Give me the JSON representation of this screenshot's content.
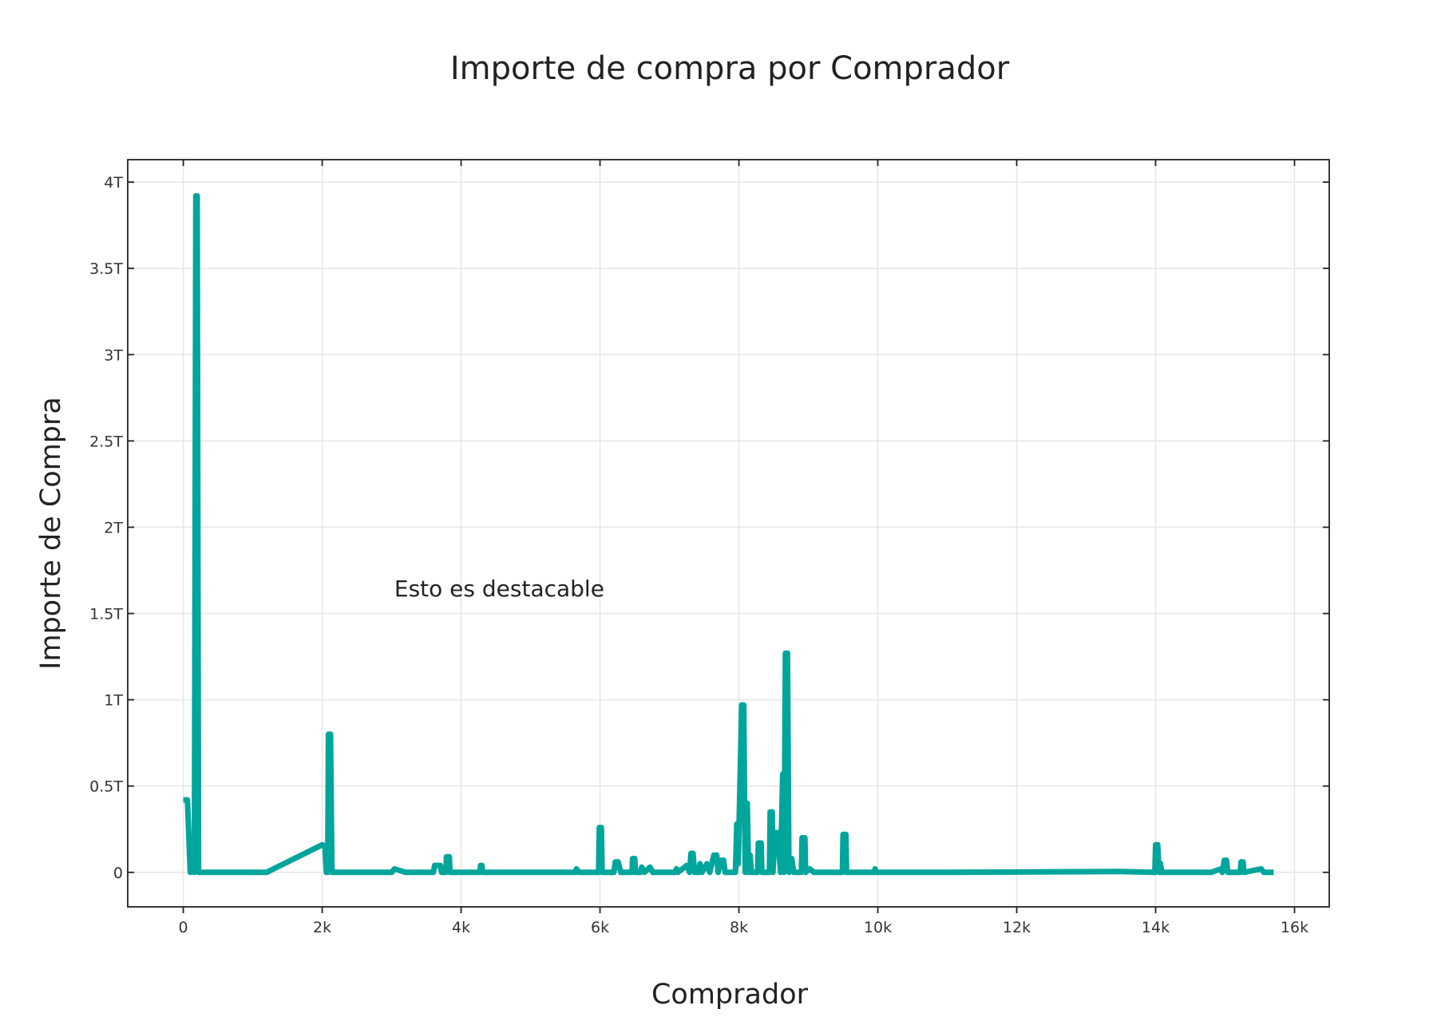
{
  "chart_data": {
    "type": "line",
    "title": "Importe de compra por Comprador",
    "xlabel": "Comprador",
    "ylabel": "Importe de Compra",
    "xlim": [
      -800,
      16500
    ],
    "ylim": [
      -200000000000.0,
      4130000000000.0
    ],
    "x_ticks": [
      {
        "value": 0,
        "label": "0"
      },
      {
        "value": 2000,
        "label": "2k"
      },
      {
        "value": 4000,
        "label": "4k"
      },
      {
        "value": 6000,
        "label": "6k"
      },
      {
        "value": 8000,
        "label": "8k"
      },
      {
        "value": 10000,
        "label": "10k"
      },
      {
        "value": 12000,
        "label": "12k"
      },
      {
        "value": 14000,
        "label": "14k"
      },
      {
        "value": 16000,
        "label": "16k"
      }
    ],
    "y_ticks": [
      {
        "value": 0,
        "label": "0"
      },
      {
        "value": 500000000000.0,
        "label": "0.5T"
      },
      {
        "value": 1000000000000.0,
        "label": "1T"
      },
      {
        "value": 1500000000000.0,
        "label": "1.5T"
      },
      {
        "value": 2000000000000.0,
        "label": "2T"
      },
      {
        "value": 2500000000000.0,
        "label": "2.5T"
      },
      {
        "value": 3000000000000.0,
        "label": "3T"
      },
      {
        "value": 3500000000000.0,
        "label": "3.5T"
      },
      {
        "value": 4000000000000.0,
        "label": "4T"
      }
    ],
    "grid": true,
    "annotation": {
      "text": "Esto es destacable",
      "x": 4550,
      "y": 1600000000000.0
    },
    "series": [
      {
        "color": "#00a59b",
        "points": [
          [
            0,
            420000000000.0
          ],
          [
            60,
            420000000000.0
          ],
          [
            100,
            0
          ],
          [
            140,
            100000000000.0
          ],
          [
            160,
            0
          ],
          [
            180,
            3920000000000.0
          ],
          [
            200,
            3920000000000.0
          ],
          [
            220,
            0
          ],
          [
            600,
            0
          ],
          [
            800,
            0
          ],
          [
            1200,
            0
          ],
          [
            2000,
            160000000000.0
          ],
          [
            2040,
            150000000000.0
          ],
          [
            2060,
            0
          ],
          [
            2080,
            0
          ],
          [
            2090,
            800000000000.0
          ],
          [
            2120,
            800000000000.0
          ],
          [
            2140,
            0
          ],
          [
            3000,
            0
          ],
          [
            3040,
            20000000000.0
          ],
          [
            3200,
            0
          ],
          [
            3600,
            0
          ],
          [
            3620,
            40000000000.0
          ],
          [
            3700,
            40000000000.0
          ],
          [
            3720,
            0
          ],
          [
            3780,
            0
          ],
          [
            3790,
            90000000000.0
          ],
          [
            3830,
            90000000000.0
          ],
          [
            3840,
            0
          ],
          [
            4270,
            0
          ],
          [
            4280,
            40000000000.0
          ],
          [
            4300,
            40000000000.0
          ],
          [
            4310,
            0
          ],
          [
            5650,
            0
          ],
          [
            5660,
            20000000000.0
          ],
          [
            5700,
            0
          ],
          [
            5980,
            0
          ],
          [
            5990,
            260000000000.0
          ],
          [
            6020,
            260000000000.0
          ],
          [
            6030,
            0
          ],
          [
            6200,
            0
          ],
          [
            6220,
            60000000000.0
          ],
          [
            6260,
            60000000000.0
          ],
          [
            6300,
            0
          ],
          [
            6460,
            0
          ],
          [
            6470,
            80000000000.0
          ],
          [
            6500,
            80000000000.0
          ],
          [
            6510,
            0
          ],
          [
            6580,
            0
          ],
          [
            6600,
            30000000000.0
          ],
          [
            6640,
            0
          ],
          [
            6720,
            30000000000.0
          ],
          [
            6760,
            0
          ],
          [
            7080,
            0
          ],
          [
            7100,
            20000000000.0
          ],
          [
            7120,
            0
          ],
          [
            7250,
            40000000000.0
          ],
          [
            7290,
            0
          ],
          [
            7310,
            110000000000.0
          ],
          [
            7340,
            110000000000.0
          ],
          [
            7360,
            0
          ],
          [
            7420,
            0
          ],
          [
            7440,
            50000000000.0
          ],
          [
            7470,
            0
          ],
          [
            7540,
            50000000000.0
          ],
          [
            7580,
            0
          ],
          [
            7640,
            100000000000.0
          ],
          [
            7680,
            100000000000.0
          ],
          [
            7700,
            0
          ],
          [
            7740,
            70000000000.0
          ],
          [
            7780,
            70000000000.0
          ],
          [
            7800,
            0
          ],
          [
            7950,
            0
          ],
          [
            7970,
            280000000000.0
          ],
          [
            7990,
            50000000000.0
          ],
          [
            8040,
            970000000000.0
          ],
          [
            8070,
            970000000000.0
          ],
          [
            8090,
            0
          ],
          [
            8100,
            400000000000.0
          ],
          [
            8120,
            400000000000.0
          ],
          [
            8140,
            0
          ],
          [
            8160,
            100000000000.0
          ],
          [
            8180,
            0
          ],
          [
            8270,
            0
          ],
          [
            8280,
            170000000000.0
          ],
          [
            8320,
            170000000000.0
          ],
          [
            8330,
            0
          ],
          [
            8440,
            0
          ],
          [
            8450,
            350000000000.0
          ],
          [
            8480,
            350000000000.0
          ],
          [
            8490,
            0
          ],
          [
            8520,
            230000000000.0
          ],
          [
            8560,
            230000000000.0
          ],
          [
            8600,
            0
          ],
          [
            8630,
            570000000000.0
          ],
          [
            8650,
            0
          ],
          [
            8670,
            1270000000000.0
          ],
          [
            8700,
            1270000000000.0
          ],
          [
            8720,
            0
          ],
          [
            8760,
            80000000000.0
          ],
          [
            8790,
            0
          ],
          [
            8900,
            0
          ],
          [
            8910,
            200000000000.0
          ],
          [
            8950,
            200000000000.0
          ],
          [
            8960,
            0
          ],
          [
            9020,
            20000000000.0
          ],
          [
            9080,
            0
          ],
          [
            9490,
            0
          ],
          [
            9500,
            220000000000.0
          ],
          [
            9540,
            220000000000.0
          ],
          [
            9550,
            0
          ],
          [
            9950,
            0
          ],
          [
            9960,
            20000000000.0
          ],
          [
            9980,
            0
          ],
          [
            11000,
            0
          ],
          [
            13500,
            5000000000.0
          ],
          [
            13990,
            0
          ],
          [
            14000,
            160000000000.0
          ],
          [
            14030,
            160000000000.0
          ],
          [
            14050,
            0
          ],
          [
            14070,
            50000000000.0
          ],
          [
            14090,
            0
          ],
          [
            14800,
            0
          ],
          [
            14940,
            20000000000.0
          ],
          [
            14960,
            0
          ],
          [
            14990,
            70000000000.0
          ],
          [
            15020,
            70000000000.0
          ],
          [
            15040,
            0
          ],
          [
            15220,
            0
          ],
          [
            15230,
            60000000000.0
          ],
          [
            15260,
            60000000000.0
          ],
          [
            15270,
            0
          ],
          [
            15520,
            20000000000.0
          ],
          [
            15560,
            0
          ],
          [
            15700,
            0
          ]
        ]
      }
    ]
  }
}
